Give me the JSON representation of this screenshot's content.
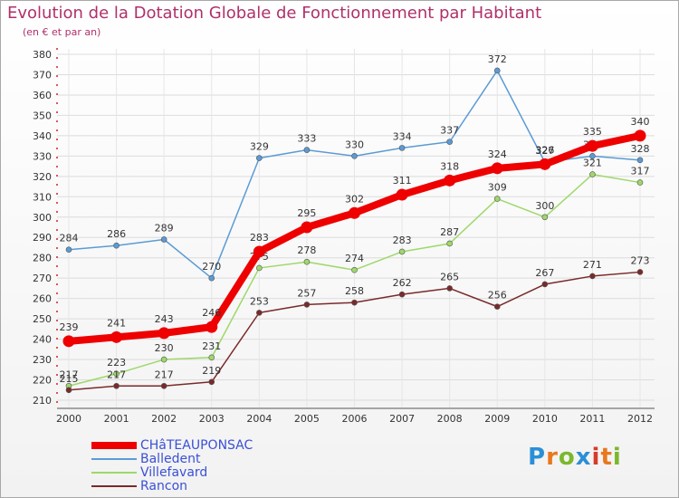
{
  "title": "Evolution de la Dotation Globale de Fonctionnement par Habitant",
  "subtitle": "(en € et par an)",
  "logo": {
    "text": "Proxiti",
    "colors": [
      "#2b8fd6",
      "#e8781e",
      "#7ab82c",
      "#2b8fd6",
      "#d63b2b",
      "#e8781e",
      "#7ab82c"
    ]
  },
  "chart_data": {
    "type": "line",
    "title": "Evolution de la Dotation Globale de Fonctionnement par Habitant",
    "subtitle": "(en € et par an)",
    "xlabel": "",
    "ylabel": "",
    "ylim": [
      210,
      380
    ],
    "yticks": [
      "210",
      "220",
      "230",
      "240",
      "250",
      "260",
      "270",
      "280",
      "290",
      "300",
      "310",
      "320",
      "330",
      "340",
      "350",
      "360",
      "370",
      "380"
    ],
    "categories": [
      "2000",
      "2001",
      "2002",
      "2003",
      "2004",
      "2005",
      "2006",
      "2007",
      "2008",
      "2009",
      "2010",
      "2011",
      "2012"
    ],
    "series": [
      {
        "name": "Balledent",
        "color": "#5b9bd5",
        "width": 1.5,
        "values": [
          284,
          286,
          289,
          270,
          329,
          333,
          330,
          334,
          337,
          372,
          327,
          330,
          328
        ]
      },
      {
        "name": "Villefavard",
        "color": "#9ed86a",
        "width": 1.5,
        "values": [
          217,
          223,
          230,
          231,
          275,
          278,
          274,
          283,
          287,
          309,
          300,
          321,
          317
        ]
      },
      {
        "name": "Rancon",
        "color": "#7a2a2a",
        "width": 1.5,
        "values": [
          215,
          217,
          217,
          219,
          253,
          257,
          258,
          262,
          265,
          256,
          267,
          271,
          273
        ]
      },
      {
        "name": "CHâTEAUPONSAC",
        "color": "#ee0000",
        "width": 8,
        "values": [
          239,
          241,
          243,
          246,
          283,
          295,
          302,
          311,
          318,
          324,
          326,
          335,
          340
        ]
      }
    ],
    "legend": [
      {
        "name": "CHâTEAUPONSAC",
        "color": "#ee0000",
        "width": 8
      },
      {
        "name": "Balledent",
        "color": "#5b9bd5",
        "width": 2
      },
      {
        "name": "Villefavard",
        "color": "#9ed86a",
        "width": 2
      },
      {
        "name": "Rancon",
        "color": "#7a2a2a",
        "width": 2
      }
    ],
    "legend_position": "bottom-left"
  }
}
